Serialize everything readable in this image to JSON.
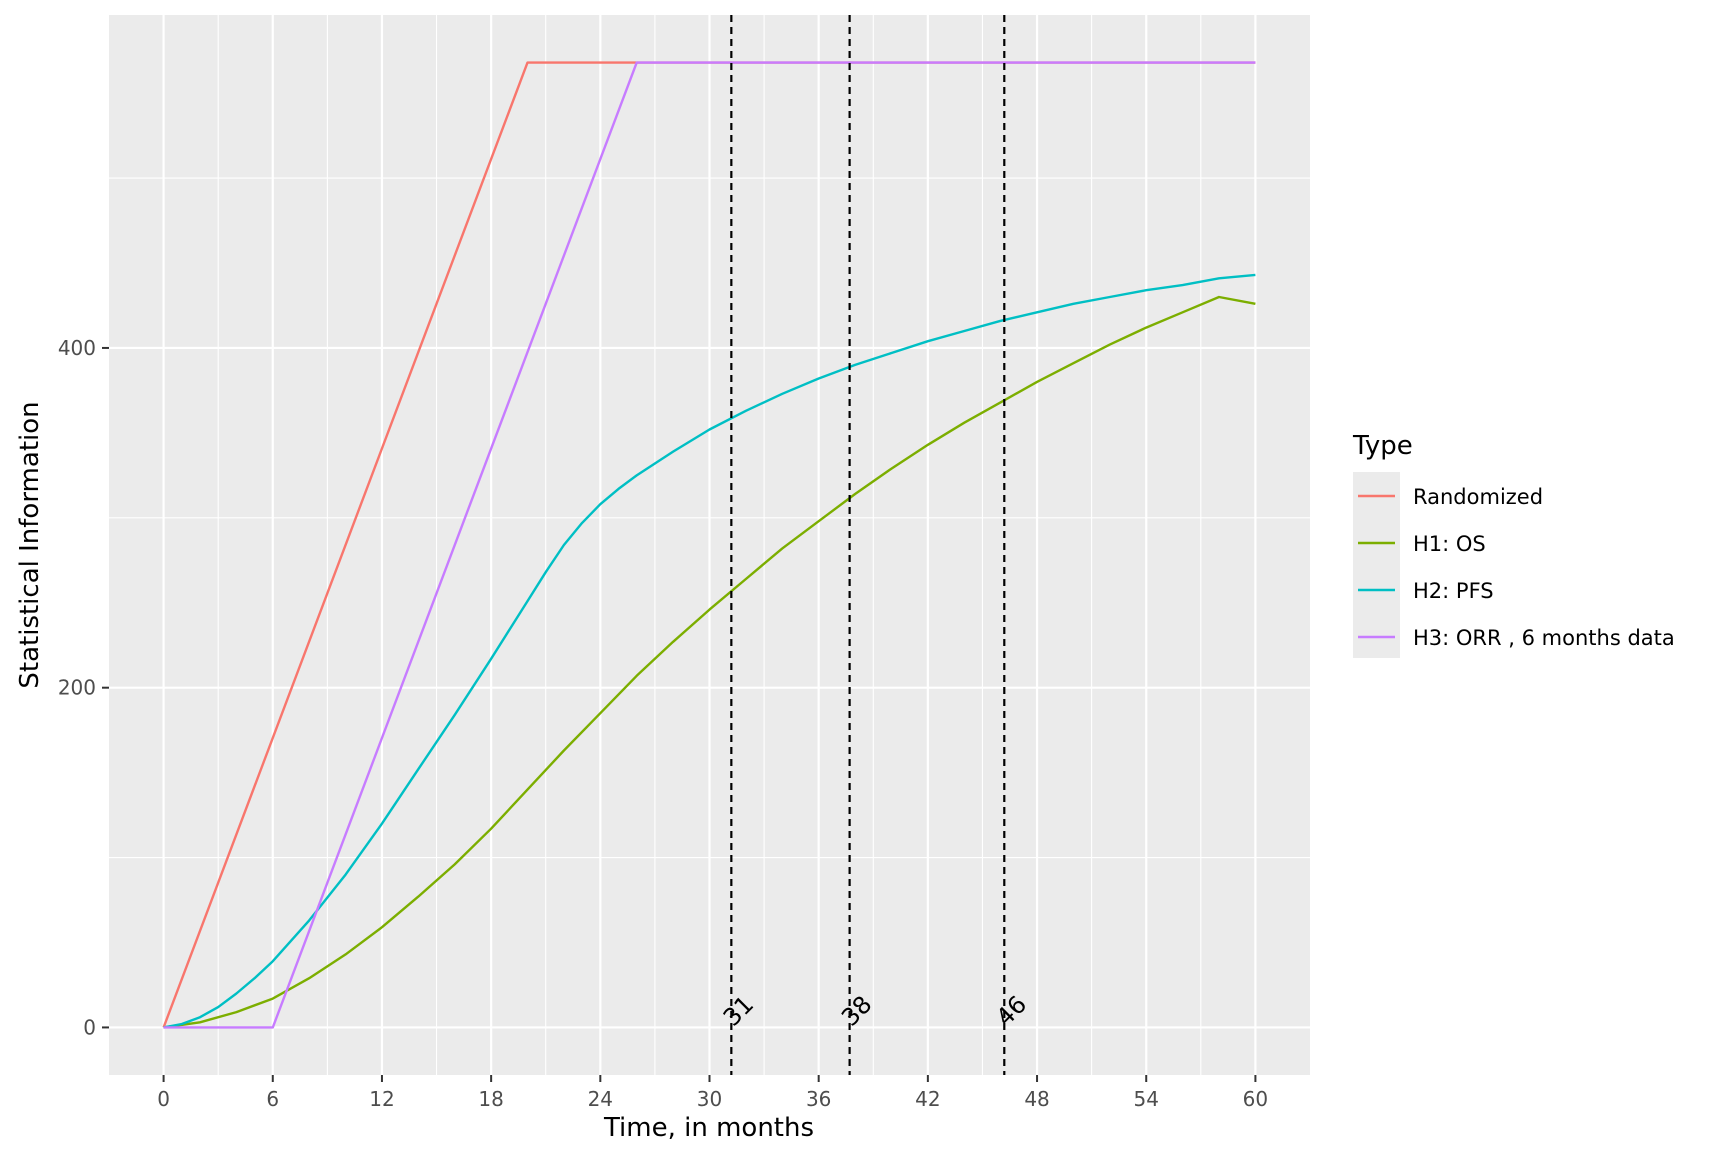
{
  "chart_data": {
    "type": "line",
    "xlabel": "Time, in months",
    "ylabel": "Statistical Information",
    "xlim": [
      -3,
      63
    ],
    "ylim": [
      -28,
      596
    ],
    "x_ticks": [
      0,
      6,
      12,
      18,
      24,
      30,
      36,
      42,
      48,
      54,
      60
    ],
    "y_ticks": [
      0,
      200,
      400
    ],
    "y_minor": [
      100,
      300,
      500
    ],
    "grid": true,
    "legend": {
      "title": "Type",
      "placement": "right"
    },
    "series": [
      {
        "name": "Randomized",
        "color": "#F8766D",
        "x": [
          0,
          20,
          60
        ],
        "y": [
          0,
          568,
          568
        ]
      },
      {
        "name": "H1: OS",
        "color": "#7CAE00",
        "x": [
          0,
          2,
          4,
          6,
          8,
          10,
          12,
          14,
          16,
          18,
          20,
          22,
          24,
          26,
          28,
          30,
          32,
          34,
          36,
          38,
          40,
          42,
          44,
          46,
          48,
          50,
          52,
          54,
          56,
          58,
          60
        ],
        "y": [
          0,
          3,
          9,
          17,
          29,
          43,
          59,
          77,
          96,
          117,
          140,
          163,
          185,
          207,
          227,
          246,
          264,
          282,
          298,
          314,
          329,
          343,
          356,
          368,
          380,
          391,
          402,
          412,
          421,
          430,
          426
        ]
      },
      {
        "name": "H2: PFS",
        "color": "#00BFC4",
        "x": [
          0,
          1,
          2,
          3,
          4,
          5,
          6,
          8,
          10,
          12,
          14,
          16,
          18,
          20,
          21,
          22,
          23,
          24,
          25,
          26,
          28,
          30,
          32,
          34,
          36,
          38,
          40,
          42,
          44,
          46,
          48,
          50,
          52,
          54,
          56,
          58,
          60
        ],
        "y": [
          0,
          2,
          6,
          12,
          20,
          29,
          39,
          63,
          90,
          120,
          152,
          184,
          217,
          251,
          268,
          284,
          297,
          308,
          317,
          325,
          339,
          352,
          363,
          373,
          382,
          390,
          397,
          404,
          410,
          416,
          421,
          426,
          430,
          434,
          437,
          441,
          443
        ]
      },
      {
        "name": "H3: ORR , 6 months data",
        "color": "#C77CFF",
        "x": [
          0,
          6,
          26,
          60
        ],
        "y": [
          0,
          0,
          568,
          568
        ]
      }
    ],
    "vlines": [
      {
        "x": 31.2,
        "label": "31"
      },
      {
        "x": 37.7,
        "label": "38"
      },
      {
        "x": 46.2,
        "label": "46"
      }
    ]
  }
}
